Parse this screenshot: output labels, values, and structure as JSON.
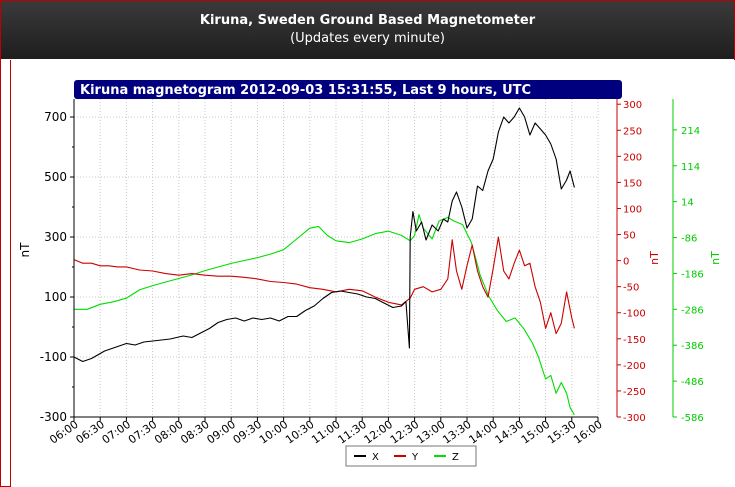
{
  "header": {
    "title": "Kiruna, Sweden Ground Based Magnetometer",
    "subtitle": "(Updates every minute)"
  },
  "colors": {
    "title_bar": "#00007f",
    "x_series": "#000000",
    "y_series": "#cc0000",
    "z_series": "#00dd00",
    "grid": "#c8c8c8",
    "frame_red": "#c00000"
  },
  "chart_data": {
    "type": "line",
    "title": "Kiruna magnetogram 2012-09-03 15:31:55, Last 9 hours, UTC",
    "x_ticks": [
      "06:00",
      "06:30",
      "07:00",
      "07:30",
      "08:00",
      "08:30",
      "09:00",
      "09:30",
      "10:00",
      "10:30",
      "11:00",
      "11:30",
      "12:00",
      "12:30",
      "13:00",
      "13:30",
      "14:00",
      "14:30",
      "15:00",
      "15:30",
      "16:00"
    ],
    "xlim": [
      "06:00",
      "16:00"
    ],
    "axes": {
      "left": {
        "label": "nT",
        "ticks": [
          "700",
          "500",
          "300",
          "100",
          "-100",
          "-300"
        ],
        "range": [
          -300,
          760
        ],
        "color": "#000000"
      },
      "right1": {
        "label": "nT",
        "ticks": [
          "300",
          "250",
          "200",
          "150",
          "100",
          "50",
          "0",
          "-50",
          "-100",
          "-150",
          "-200",
          "-250",
          "-300"
        ],
        "range": [
          -300,
          310
        ],
        "color": "#cc0000"
      },
      "right2": {
        "label": "nT",
        "ticks": [
          "214",
          "114",
          "14",
          "-86",
          "-186",
          "-286",
          "-386",
          "-486",
          "-586"
        ],
        "range": [
          -586,
          300
        ],
        "color": "#00cc00"
      }
    },
    "grid": true,
    "legend_position": "bottom-center",
    "series": [
      {
        "name": "X",
        "axis": "left",
        "color": "#000000",
        "points": [
          [
            "06:00",
            -100
          ],
          [
            "06:10",
            -115
          ],
          [
            "06:20",
            -105
          ],
          [
            "06:35",
            -80
          ],
          [
            "06:50",
            -65
          ],
          [
            "07:00",
            -55
          ],
          [
            "07:10",
            -60
          ],
          [
            "07:20",
            -50
          ],
          [
            "07:35",
            -45
          ],
          [
            "07:50",
            -40
          ],
          [
            "08:05",
            -30
          ],
          [
            "08:15",
            -35
          ],
          [
            "08:25",
            -20
          ],
          [
            "08:35",
            -5
          ],
          [
            "08:45",
            15
          ],
          [
            "08:55",
            25
          ],
          [
            "09:05",
            30
          ],
          [
            "09:15",
            20
          ],
          [
            "09:25",
            30
          ],
          [
            "09:35",
            25
          ],
          [
            "09:45",
            30
          ],
          [
            "09:55",
            20
          ],
          [
            "10:05",
            35
          ],
          [
            "10:15",
            35
          ],
          [
            "10:25",
            55
          ],
          [
            "10:35",
            70
          ],
          [
            "10:45",
            95
          ],
          [
            "10:55",
            115
          ],
          [
            "11:05",
            120
          ],
          [
            "11:15",
            115
          ],
          [
            "11:25",
            110
          ],
          [
            "11:35",
            100
          ],
          [
            "11:45",
            95
          ],
          [
            "11:55",
            80
          ],
          [
            "12:05",
            65
          ],
          [
            "12:15",
            70
          ],
          [
            "12:20",
            85
          ],
          [
            "12:24",
            -70
          ],
          [
            "12:25",
            300
          ],
          [
            "12:28",
            385
          ],
          [
            "12:32",
            320
          ],
          [
            "12:38",
            350
          ],
          [
            "12:43",
            290
          ],
          [
            "12:50",
            340
          ],
          [
            "12:57",
            320
          ],
          [
            "13:03",
            360
          ],
          [
            "13:08",
            350
          ],
          [
            "13:13",
            420
          ],
          [
            "13:18",
            450
          ],
          [
            "13:24",
            400
          ],
          [
            "13:30",
            330
          ],
          [
            "13:36",
            360
          ],
          [
            "13:42",
            470
          ],
          [
            "13:48",
            455
          ],
          [
            "13:54",
            520
          ],
          [
            "14:00",
            560
          ],
          [
            "14:06",
            650
          ],
          [
            "14:12",
            700
          ],
          [
            "14:18",
            680
          ],
          [
            "14:24",
            700
          ],
          [
            "14:30",
            730
          ],
          [
            "14:36",
            700
          ],
          [
            "14:42",
            640
          ],
          [
            "14:48",
            680
          ],
          [
            "14:54",
            660
          ],
          [
            "15:00",
            640
          ],
          [
            "15:06",
            610
          ],
          [
            "15:12",
            560
          ],
          [
            "15:18",
            460
          ],
          [
            "15:24",
            490
          ],
          [
            "15:28",
            520
          ],
          [
            "15:33",
            465
          ]
        ]
      },
      {
        "name": "Y",
        "axis": "right1",
        "color": "#cc0000",
        "points": [
          [
            "06:00",
            2
          ],
          [
            "06:10",
            -5
          ],
          [
            "06:20",
            -5
          ],
          [
            "06:30",
            -10
          ],
          [
            "06:40",
            -10
          ],
          [
            "06:50",
            -12
          ],
          [
            "07:00",
            -12
          ],
          [
            "07:15",
            -18
          ],
          [
            "07:30",
            -20
          ],
          [
            "07:45",
            -25
          ],
          [
            "08:00",
            -28
          ],
          [
            "08:15",
            -25
          ],
          [
            "08:30",
            -28
          ],
          [
            "08:45",
            -30
          ],
          [
            "09:00",
            -30
          ],
          [
            "09:15",
            -32
          ],
          [
            "09:30",
            -35
          ],
          [
            "09:45",
            -40
          ],
          [
            "10:00",
            -42
          ],
          [
            "10:15",
            -45
          ],
          [
            "10:30",
            -52
          ],
          [
            "10:45",
            -55
          ],
          [
            "11:00",
            -60
          ],
          [
            "11:15",
            -55
          ],
          [
            "11:30",
            -58
          ],
          [
            "11:45",
            -70
          ],
          [
            "12:00",
            -80
          ],
          [
            "12:15",
            -85
          ],
          [
            "12:25",
            -72
          ],
          [
            "12:30",
            -55
          ],
          [
            "12:40",
            -50
          ],
          [
            "12:50",
            -60
          ],
          [
            "13:00",
            -55
          ],
          [
            "13:08",
            -35
          ],
          [
            "13:13",
            40
          ],
          [
            "13:18",
            -20
          ],
          [
            "13:24",
            -55
          ],
          [
            "13:30",
            -10
          ],
          [
            "13:36",
            30
          ],
          [
            "13:42",
            -20
          ],
          [
            "13:48",
            -50
          ],
          [
            "13:54",
            -70
          ],
          [
            "14:00",
            -15
          ],
          [
            "14:06",
            45
          ],
          [
            "14:12",
            -20
          ],
          [
            "14:18",
            -35
          ],
          [
            "14:24",
            -5
          ],
          [
            "14:30",
            20
          ],
          [
            "14:36",
            -10
          ],
          [
            "14:42",
            -5
          ],
          [
            "14:48",
            -50
          ],
          [
            "14:54",
            -80
          ],
          [
            "15:00",
            -130
          ],
          [
            "15:06",
            -100
          ],
          [
            "15:12",
            -140
          ],
          [
            "15:18",
            -120
          ],
          [
            "15:24",
            -60
          ],
          [
            "15:30",
            -110
          ],
          [
            "15:33",
            -130
          ]
        ]
      },
      {
        "name": "Z",
        "axis": "right2",
        "color": "#00dd00",
        "points": [
          [
            "06:00",
            -286
          ],
          [
            "06:15",
            -286
          ],
          [
            "06:30",
            -272
          ],
          [
            "06:45",
            -265
          ],
          [
            "07:00",
            -255
          ],
          [
            "07:15",
            -232
          ],
          [
            "07:30",
            -220
          ],
          [
            "07:45",
            -210
          ],
          [
            "08:00",
            -200
          ],
          [
            "08:15",
            -190
          ],
          [
            "08:30",
            -178
          ],
          [
            "08:45",
            -168
          ],
          [
            "09:00",
            -158
          ],
          [
            "09:15",
            -150
          ],
          [
            "09:30",
            -142
          ],
          [
            "09:45",
            -132
          ],
          [
            "10:00",
            -120
          ],
          [
            "10:15",
            -90
          ],
          [
            "10:30",
            -60
          ],
          [
            "10:40",
            -55
          ],
          [
            "10:50",
            -80
          ],
          [
            "11:00",
            -95
          ],
          [
            "11:15",
            -100
          ],
          [
            "11:30",
            -90
          ],
          [
            "11:45",
            -75
          ],
          [
            "12:00",
            -68
          ],
          [
            "12:15",
            -80
          ],
          [
            "12:25",
            -95
          ],
          [
            "12:30",
            -80
          ],
          [
            "12:35",
            -22
          ],
          [
            "12:40",
            -60
          ],
          [
            "12:50",
            -90
          ],
          [
            "12:58",
            -40
          ],
          [
            "13:08",
            -30
          ],
          [
            "13:15",
            -40
          ],
          [
            "13:25",
            -50
          ],
          [
            "13:35",
            -100
          ],
          [
            "13:45",
            -190
          ],
          [
            "13:55",
            -250
          ],
          [
            "14:05",
            -290
          ],
          [
            "14:15",
            -320
          ],
          [
            "14:25",
            -310
          ],
          [
            "14:35",
            -340
          ],
          [
            "14:45",
            -380
          ],
          [
            "14:52",
            -420
          ],
          [
            "15:00",
            -480
          ],
          [
            "15:06",
            -470
          ],
          [
            "15:12",
            -520
          ],
          [
            "15:18",
            -490
          ],
          [
            "15:24",
            -520
          ],
          [
            "15:28",
            -560
          ],
          [
            "15:33",
            -580
          ]
        ]
      }
    ]
  }
}
